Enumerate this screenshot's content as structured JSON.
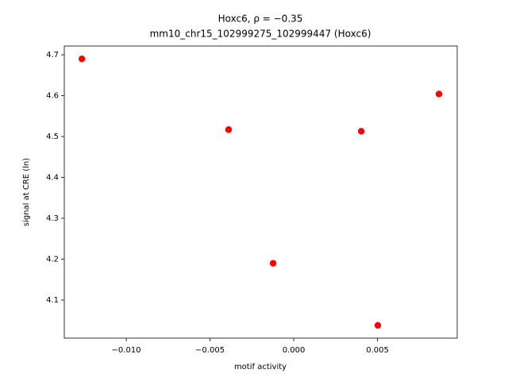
{
  "chart_data": {
    "type": "scatter",
    "title": "Hoxc6, ρ = −0.35",
    "subtitle": "mm10_chr15_102999275_102999447 (Hoxc6)",
    "x_label": "motif activity",
    "y_label": "signal at CRE (ln)",
    "color": "#ff0000",
    "x": [
      -0.01265,
      -0.00389,
      -0.00123,
      0.00403,
      0.00502,
      0.00867
    ],
    "values": [
      4.69,
      4.517,
      4.19,
      4.513,
      4.038,
      4.604
    ],
    "xlim": [
      -0.0137,
      0.00976
    ],
    "ylim": [
      4.0068,
      4.7214
    ],
    "xticks": [
      {
        "value": -0.01,
        "label": "−0.010"
      },
      {
        "value": -0.005,
        "label": "−0.005"
      },
      {
        "value": 0,
        "label": "0.000"
      },
      {
        "value": 0.005,
        "label": "0.005"
      }
    ],
    "yticks": [
      4.1,
      4.2,
      4.3,
      4.4,
      4.5,
      4.6,
      4.7
    ]
  }
}
